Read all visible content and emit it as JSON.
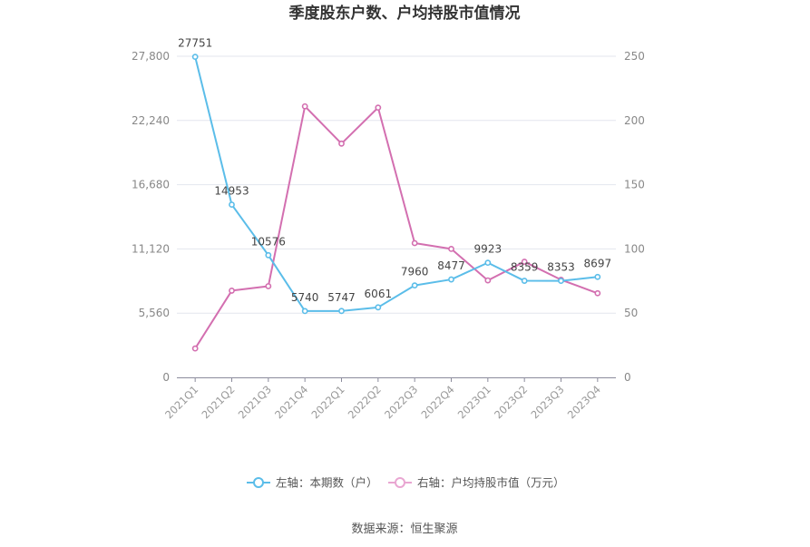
{
  "chart_data": {
    "type": "line",
    "title": "季度股东户数、户均持股市值情况",
    "categories": [
      "2021Q1",
      "2021Q2",
      "2021Q3",
      "2021Q4",
      "2022Q1",
      "2022Q2",
      "2022Q3",
      "2022Q4",
      "2023Q1",
      "2023Q2",
      "2023Q3",
      "2023Q4"
    ],
    "left_axis": {
      "ylim": [
        0,
        27800
      ],
      "ticks": [
        "0",
        "5,560",
        "11,120",
        "16,680",
        "22,240",
        "27,800"
      ]
    },
    "right_axis": {
      "ylim": [
        0,
        250
      ],
      "ticks": [
        "0",
        "50",
        "100",
        "150",
        "200",
        "250"
      ]
    },
    "series": [
      {
        "name": "左轴：本期数（户）",
        "axis": "left",
        "color": "#5bbde9",
        "values": [
          27751,
          14953,
          10576,
          5740,
          5747,
          6061,
          7960,
          8477,
          9923,
          8359,
          8353,
          8697
        ],
        "labels": [
          "27751",
          "14953",
          "10576",
          "5740",
          "5747",
          "6061",
          "7960",
          "8477",
          "9923",
          "8359",
          "8353",
          "8697"
        ]
      },
      {
        "name": "右轴：户均持股市值（万元）",
        "axis": "right",
        "color": "#d36fb0",
        "values": [
          22.5,
          67.5,
          71,
          211,
          182,
          210,
          104.5,
          100,
          75.5,
          90,
          76,
          65.5
        ]
      }
    ],
    "grid": true,
    "legend_position": "bottom",
    "source": "数据来源：恒生聚源"
  }
}
